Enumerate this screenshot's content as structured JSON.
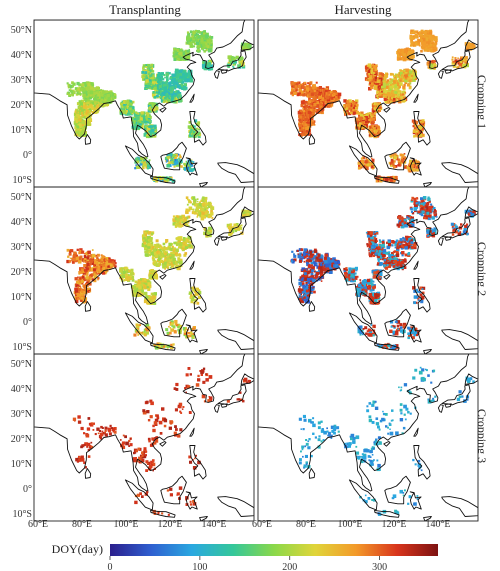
{
  "figure": {
    "col_titles": [
      "Transplanting",
      "Harvesting"
    ],
    "row_labels": [
      "Cropping 1",
      "Cropping 2",
      "Cropping 3"
    ],
    "lat_ticks": [
      "50°N",
      "40°N",
      "30°N",
      "20°N",
      "10°N",
      "0°",
      "10°S"
    ],
    "lon_ticks": [
      "60°E",
      "80°E",
      "100°E",
      "120°E",
      "140°E"
    ],
    "colorbar": {
      "title": "DOY(day)",
      "ticks": [
        "0",
        "100",
        "200",
        "300"
      ],
      "range": [
        0,
        365
      ],
      "colors": [
        "#2b1f8c",
        "#2f5fd0",
        "#2aa8e0",
        "#34c79a",
        "#8ad84a",
        "#e0d53a",
        "#f39a2a",
        "#d8351c",
        "#7d1212"
      ]
    }
  },
  "chart_data": {
    "type": "heatmap",
    "title": "",
    "xlabel": "",
    "ylabel": "",
    "x_range": [
      "60°E",
      "145°E"
    ],
    "y_range": [
      "10°S",
      "53°N"
    ],
    "colorbar_label": "DOY(day)",
    "colorbar_range": [
      0,
      365
    ],
    "panels": [
      {
        "column": "Transplanting",
        "row": "Cropping 1",
        "dominant_doy": [
          150,
          230
        ]
      },
      {
        "column": "Harvesting",
        "row": "Cropping 1",
        "dominant_doy": [
          250,
          330
        ]
      },
      {
        "column": "Transplanting",
        "row": "Cropping 2",
        "dominant_doy": [
          180,
          300
        ]
      },
      {
        "column": "Harvesting",
        "row": "Cropping 2",
        "dominant_doy": [
          40,
          320
        ]
      },
      {
        "column": "Transplanting",
        "row": "Cropping 3",
        "dominant_doy": [
          300,
          350
        ]
      },
      {
        "column": "Harvesting",
        "row": "Cropping 3",
        "dominant_doy": [
          50,
          110
        ]
      }
    ]
  }
}
